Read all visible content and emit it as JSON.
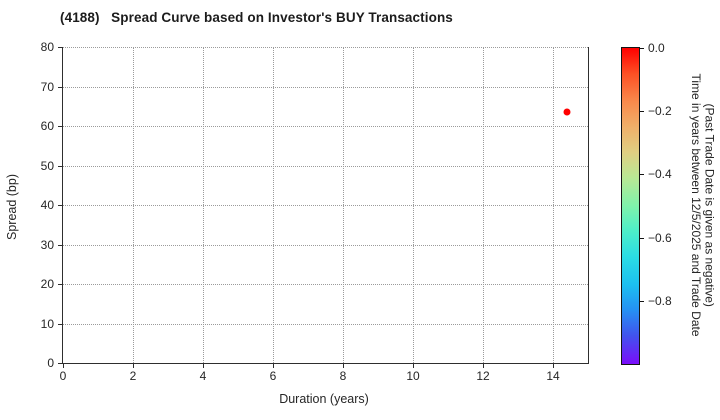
{
  "chart_data": {
    "type": "scatter",
    "title": "(4188)   Spread Curve based on Investor's BUY Transactions",
    "xlabel": "Duration (years)",
    "ylabel": "Spread (bp)",
    "xlim": [
      0,
      15
    ],
    "ylim": [
      0,
      80
    ],
    "x_ticks": [
      0,
      2,
      4,
      6,
      8,
      10,
      12,
      14
    ],
    "y_ticks": [
      0,
      10,
      20,
      30,
      40,
      50,
      60,
      70,
      80
    ],
    "x_gridlines": [
      2,
      4,
      6,
      8,
      10,
      12,
      14
    ],
    "y_gridlines": [
      10,
      20,
      30,
      40,
      50,
      60,
      70,
      80
    ],
    "grid_style": "dotted",
    "legend": "none",
    "series": [
      {
        "name": "investor-buy-transactions",
        "points": [
          {
            "duration_years": 14.4,
            "spread_bp": 63.5,
            "time_value": 0.0,
            "color": "#ff0000"
          }
        ]
      }
    ],
    "colorbar": {
      "label_lines": [
        "Time in years between 12/5/2025 and Trade Date",
        "(Past Trade Date is given as negative)"
      ],
      "range_top": 0.0,
      "range_bottom": -1.0,
      "ticks": [
        {
          "value": 0.0,
          "label": "0.0"
        },
        {
          "value": -0.2,
          "label": "−0.2"
        },
        {
          "value": -0.4,
          "label": "−0.4"
        },
        {
          "value": -0.6,
          "label": "−0.6"
        },
        {
          "value": -0.8,
          "label": "−0.8"
        }
      ],
      "gradient_stops": [
        {
          "pos": 0,
          "color": "#ff0000"
        },
        {
          "pos": 8,
          "color": "#fd4f24"
        },
        {
          "pos": 17,
          "color": "#f98a4c"
        },
        {
          "pos": 25,
          "color": "#f0af69"
        },
        {
          "pos": 33,
          "color": "#e0cf82"
        },
        {
          "pos": 41,
          "color": "#b9e894"
        },
        {
          "pos": 50,
          "color": "#7ff2ab"
        },
        {
          "pos": 58,
          "color": "#4deec9"
        },
        {
          "pos": 66,
          "color": "#2bdde4"
        },
        {
          "pos": 75,
          "color": "#1cbff0"
        },
        {
          "pos": 83,
          "color": "#2590f3"
        },
        {
          "pos": 91,
          "color": "#4153ee"
        },
        {
          "pos": 100,
          "color": "#7a0dfa"
        }
      ]
    }
  }
}
